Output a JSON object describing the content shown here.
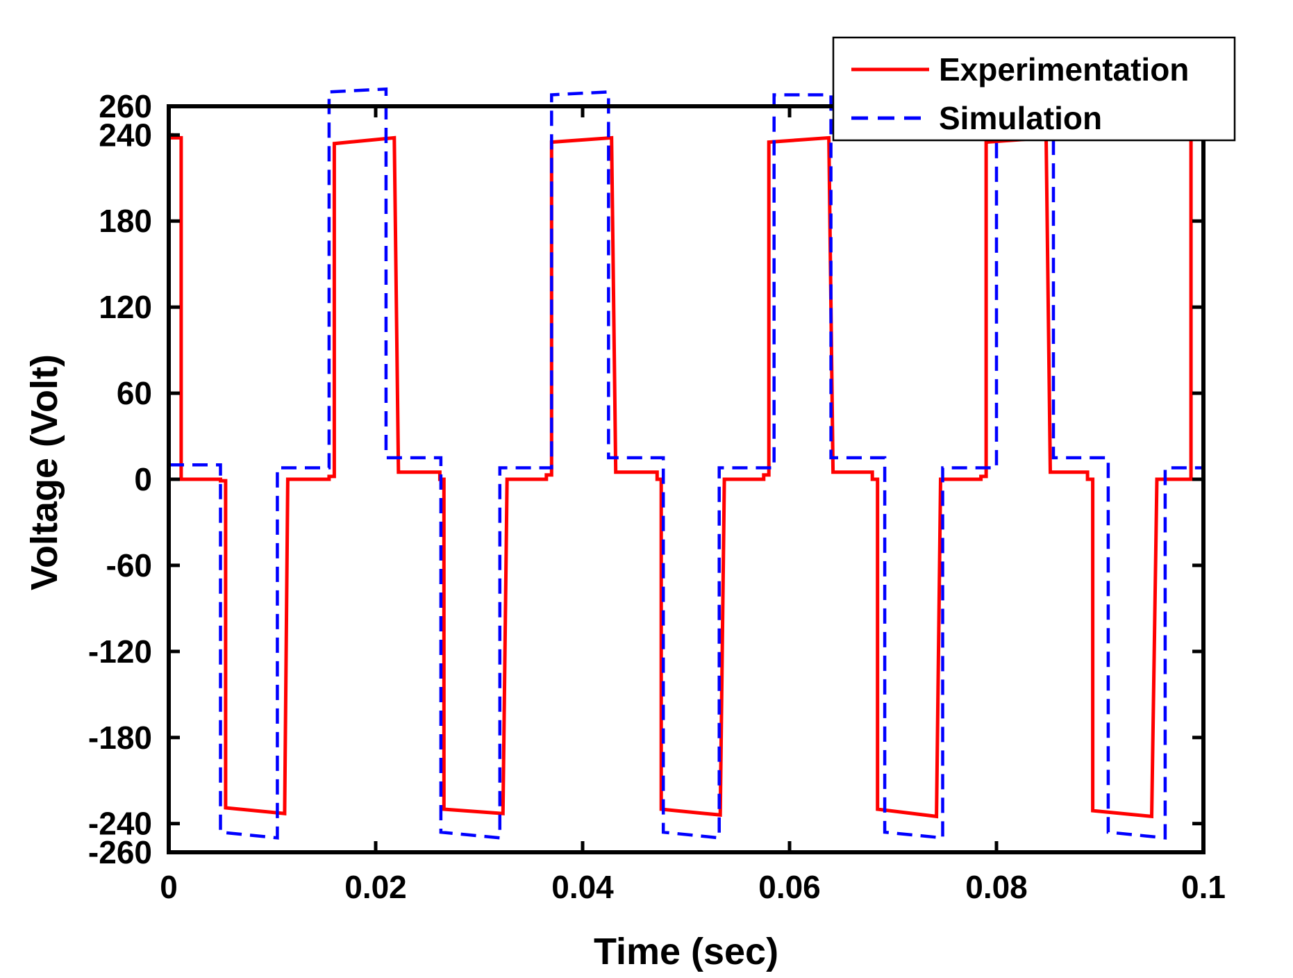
{
  "chart_data": {
    "type": "line",
    "title": "",
    "xlabel": "Time (sec)",
    "ylabel": "Voltage (Volt)",
    "xlim": [
      0,
      0.1
    ],
    "ylim": [
      -260,
      260
    ],
    "x_ticks": [
      0,
      0.02,
      0.04,
      0.06,
      0.08,
      0.1
    ],
    "x_tick_labels": [
      "0",
      "0.02",
      "0.04",
      "0.06",
      "0.08",
      "0.1"
    ],
    "y_ticks": [
      260,
      240,
      180,
      120,
      60,
      0,
      -60,
      -120,
      -180,
      -240,
      -260
    ],
    "y_tick_labels": [
      "260",
      "240",
      "180",
      "120",
      "60",
      "0",
      "-60",
      "-120",
      "-180",
      "-240",
      "-260"
    ],
    "grid": false,
    "legend_position": "top-right",
    "series": [
      {
        "name": "Experimentation",
        "color": "#ff0000",
        "style": "solid",
        "x": [
          0,
          0.0003,
          0.0003,
          0.0012,
          0.0012,
          0.002,
          0.005,
          0.005,
          0.0055,
          0.0055,
          0.0112,
          0.0112,
          0.0115,
          0.0155,
          0.0155,
          0.016,
          0.016,
          0.0218,
          0.0218,
          0.0222,
          0.0262,
          0.0262,
          0.0266,
          0.0266,
          0.0323,
          0.0323,
          0.0327,
          0.0365,
          0.0365,
          0.037,
          0.037,
          0.0428,
          0.0428,
          0.0432,
          0.0472,
          0.0472,
          0.0476,
          0.0476,
          0.0533,
          0.0533,
          0.0537,
          0.0575,
          0.0575,
          0.058,
          0.058,
          0.0638,
          0.0638,
          0.0642,
          0.068,
          0.068,
          0.0685,
          0.0685,
          0.0742,
          0.0742,
          0.0746,
          0.0785,
          0.0785,
          0.079,
          0.079,
          0.0848,
          0.0848,
          0.0852,
          0.0888,
          0.0888,
          0.0893,
          0.0893,
          0.095,
          0.095,
          0.0955,
          0.0988,
          0.0988,
          0.1
        ],
        "y": [
          240,
          240,
          238,
          238,
          0,
          0,
          0,
          -1,
          -1,
          -229,
          -233,
          -233,
          0,
          0,
          2,
          2,
          234,
          238,
          238,
          5,
          5,
          0,
          0,
          -230,
          -233,
          -233,
          0,
          0,
          3,
          3,
          235,
          238,
          238,
          5,
          5,
          0,
          0,
          -230,
          -234,
          -234,
          0,
          0,
          3,
          3,
          235,
          238,
          238,
          5,
          5,
          0,
          0,
          -230,
          -235,
          -235,
          0,
          0,
          2,
          2,
          235,
          238,
          238,
          5,
          5,
          0,
          0,
          -231,
          -235,
          -235,
          0,
          0,
          238,
          238
        ]
      },
      {
        "name": "Simulation",
        "color": "#0000ff",
        "style": "dashed",
        "x": [
          0,
          0.005,
          0.005,
          0.0105,
          0.0105,
          0.0155,
          0.0155,
          0.021,
          0.021,
          0.0263,
          0.0263,
          0.032,
          0.032,
          0.037,
          0.037,
          0.0425,
          0.0425,
          0.0478,
          0.0478,
          0.0532,
          0.0532,
          0.0585,
          0.0585,
          0.064,
          0.064,
          0.0692,
          0.0692,
          0.0748,
          0.0748,
          0.08,
          0.08,
          0.0855,
          0.0855,
          0.0908,
          0.0908,
          0.0963,
          0.0963,
          0.1
        ],
        "y": [
          10,
          10,
          -246,
          -250,
          8,
          8,
          270,
          272,
          15,
          15,
          -246,
          -250,
          8,
          8,
          268,
          270,
          15,
          15,
          -246,
          -250,
          8,
          8,
          268,
          268,
          15,
          15,
          -246,
          -250,
          8,
          8,
          268,
          268,
          15,
          15,
          -246,
          -250,
          8,
          8
        ]
      }
    ]
  }
}
